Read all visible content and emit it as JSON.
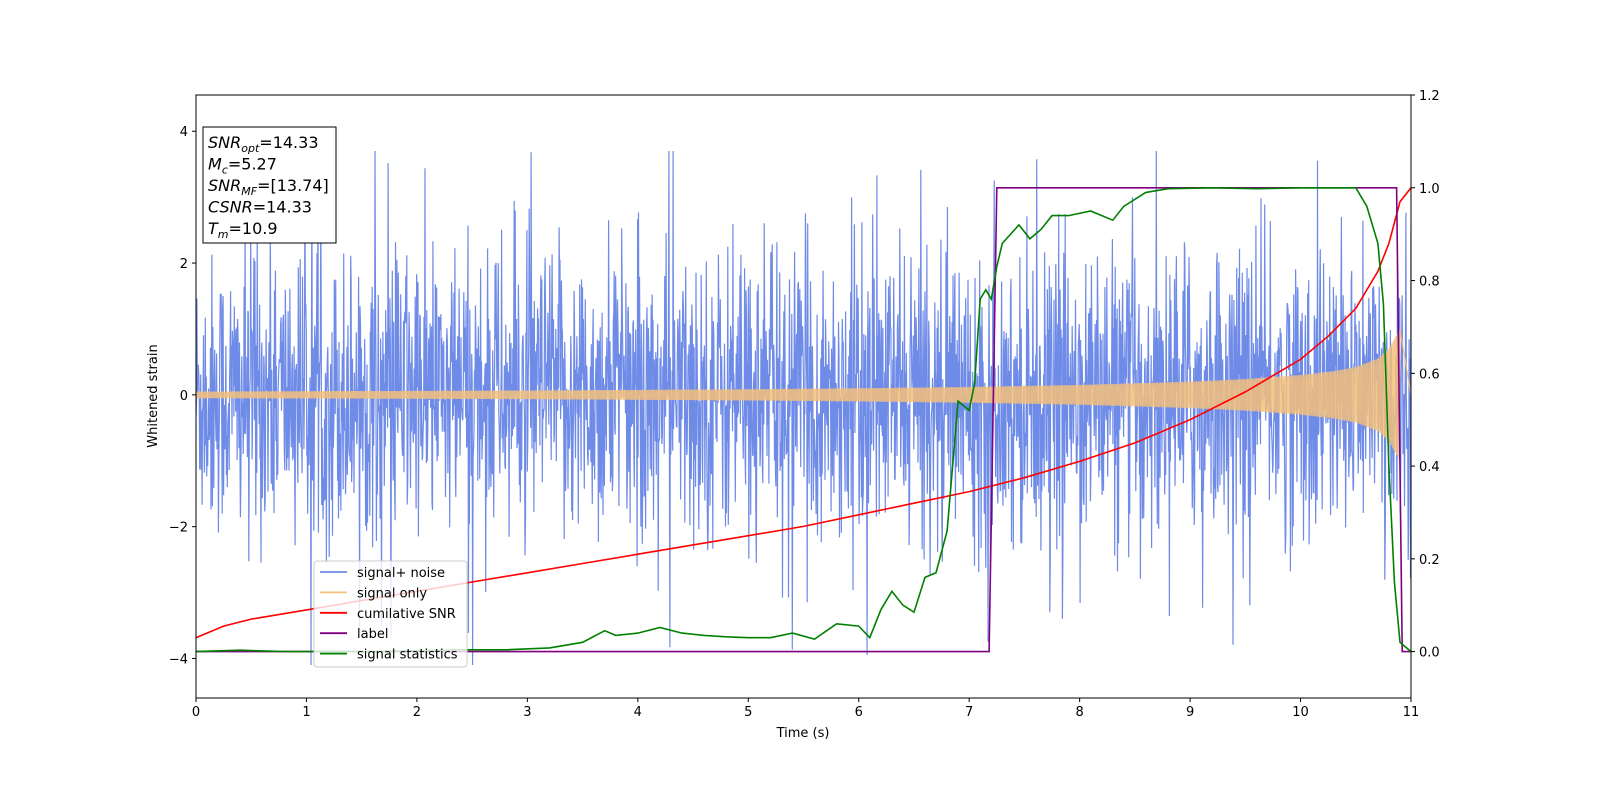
{
  "chart_data": {
    "type": "line",
    "xlabel": "Time (s)",
    "ylabel": "Whitened strain",
    "xlim": [
      0,
      11
    ],
    "ylim_left": [
      -4.6,
      4.55
    ],
    "ylim_right": [
      -0.1,
      1.2
    ],
    "xticks": [
      "0",
      "1",
      "2",
      "3",
      "4",
      "5",
      "6",
      "7",
      "8",
      "9",
      "10",
      "11"
    ],
    "yticks_left": [
      "−4",
      "−2",
      "0",
      "2",
      "4"
    ],
    "yticks_right": [
      "0.0",
      "0.2",
      "0.4",
      "0.6",
      "0.8",
      "1.0",
      "1.2"
    ],
    "grid": false,
    "legend_position": "lower-left",
    "annotation": [
      {
        "key": "SNR",
        "sub": "opt",
        "value": "=14.33"
      },
      {
        "key": "M",
        "sub": "c",
        "value": "=5.27"
      },
      {
        "key": "SNR",
        "sub": "MF",
        "value": "=[13.74]"
      },
      {
        "key": "CSNR",
        "sub": "",
        "value": "=14.33"
      },
      {
        "key": "T",
        "sub": "m",
        "value": "=10.9"
      }
    ],
    "series": [
      {
        "name": "signal+ noise",
        "axis": "left",
        "color": "#6f8be8",
        "description_envelope": {
          "center": 0,
          "typical_amplitude": 2.0,
          "max_peaks": 3.7,
          "min_peaks": -4.1
        }
      },
      {
        "name": "signal only",
        "axis": "left",
        "color": "#f5c07a",
        "envelope": {
          "x": [
            0,
            1,
            2,
            3,
            4,
            5,
            6,
            7,
            8,
            9,
            9.5,
            10,
            10.3,
            10.5,
            10.7,
            10.8,
            10.9
          ],
          "amplitude": [
            0.05,
            0.055,
            0.06,
            0.065,
            0.075,
            0.085,
            0.1,
            0.12,
            0.15,
            0.2,
            0.24,
            0.3,
            0.36,
            0.42,
            0.55,
            0.7,
            1.0
          ]
        }
      },
      {
        "name": "cumilative SNR",
        "axis": "right",
        "color": "#ff0000",
        "x": [
          0,
          0.25,
          0.5,
          1,
          1.5,
          2,
          2.5,
          3,
          3.5,
          4,
          4.5,
          5,
          5.5,
          6,
          6.5,
          7,
          7.5,
          8,
          8.5,
          9,
          9.5,
          10,
          10.25,
          10.5,
          10.7,
          10.8,
          10.9,
          11
        ],
        "y": [
          0.03,
          0.055,
          0.07,
          0.09,
          0.11,
          0.13,
          0.15,
          0.17,
          0.19,
          0.21,
          0.23,
          0.25,
          0.27,
          0.295,
          0.32,
          0.345,
          0.375,
          0.41,
          0.45,
          0.5,
          0.56,
          0.63,
          0.68,
          0.74,
          0.82,
          0.88,
          0.97,
          1.0
        ]
      },
      {
        "name": "label",
        "axis": "right",
        "color": "#800080",
        "x": [
          0,
          7.18,
          7.25,
          10.87,
          10.92,
          11
        ],
        "y": [
          0.0,
          0.0,
          1.0,
          1.0,
          0.0,
          0.0
        ]
      },
      {
        "name": "signal statistics",
        "axis": "right",
        "color": "#008000",
        "x": [
          0,
          0.4,
          0.8,
          1.2,
          1.6,
          2.0,
          2.4,
          2.8,
          3.2,
          3.5,
          3.7,
          3.8,
          4.0,
          4.2,
          4.4,
          4.6,
          4.8,
          5.0,
          5.2,
          5.4,
          5.6,
          5.8,
          6.0,
          6.1,
          6.2,
          6.3,
          6.4,
          6.5,
          6.6,
          6.7,
          6.8,
          6.9,
          7.0,
          7.05,
          7.1,
          7.15,
          7.2,
          7.25,
          7.3,
          7.45,
          7.55,
          7.65,
          7.75,
          7.9,
          8.1,
          8.3,
          8.4,
          8.6,
          8.8,
          9.2,
          9.6,
          10.0,
          10.5,
          10.6,
          10.7,
          10.75,
          10.8,
          10.85,
          10.9,
          11.0
        ],
        "y": [
          0.0,
          0.003,
          0.0,
          0.0,
          0.0,
          0.002,
          0.004,
          0.004,
          0.008,
          0.02,
          0.045,
          0.035,
          0.04,
          0.052,
          0.04,
          0.035,
          0.032,
          0.03,
          0.03,
          0.04,
          0.027,
          0.06,
          0.055,
          0.03,
          0.09,
          0.13,
          0.1,
          0.085,
          0.16,
          0.17,
          0.26,
          0.54,
          0.52,
          0.58,
          0.76,
          0.78,
          0.76,
          0.83,
          0.88,
          0.92,
          0.89,
          0.91,
          0.94,
          0.94,
          0.95,
          0.93,
          0.96,
          0.99,
          0.998,
          1.0,
          0.998,
          1.0,
          1.0,
          0.96,
          0.88,
          0.75,
          0.4,
          0.15,
          0.02,
          0.0
        ]
      }
    ]
  }
}
